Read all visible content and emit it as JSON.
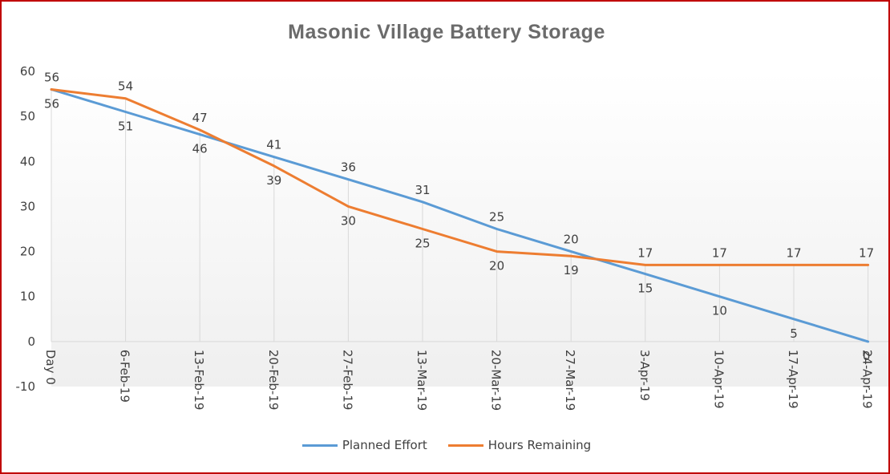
{
  "chart_data": {
    "type": "line",
    "title": "Masonic Village Battery Storage",
    "categories": [
      "Day 0",
      "6-Feb-19",
      "13-Feb-19",
      "20-Feb-19",
      "27-Feb-19",
      "13-Mar-19",
      "20-Mar-19",
      "27-Mar-19",
      "3-Apr-19",
      "10-Apr-19",
      "17-Apr-19",
      "24-Apr-19"
    ],
    "ylim": [
      -10,
      60
    ],
    "yticks": [
      "-10",
      "0",
      "10",
      "20",
      "30",
      "40",
      "50",
      "60"
    ],
    "grid": "vertical drop lines",
    "legend_position": "bottom",
    "series": [
      {
        "name": "Planned Effort",
        "color": "#5b9bd5",
        "values": [
          56,
          51,
          46,
          41,
          36,
          31,
          25,
          20,
          15,
          10,
          5,
          0
        ],
        "labels": [
          "56",
          "51",
          "46",
          "41",
          "36",
          "31",
          "25",
          "20",
          "15",
          "10",
          "5",
          "0"
        ]
      },
      {
        "name": "Hours Remaining",
        "color": "#ed7d31",
        "values": [
          56,
          54,
          47,
          39,
          30,
          25,
          20,
          19,
          17,
          17,
          17,
          17
        ],
        "labels": [
          "56",
          "54",
          "47",
          "39",
          "30",
          "25",
          "20",
          "19",
          "17",
          "17",
          "17",
          "17"
        ]
      }
    ]
  }
}
